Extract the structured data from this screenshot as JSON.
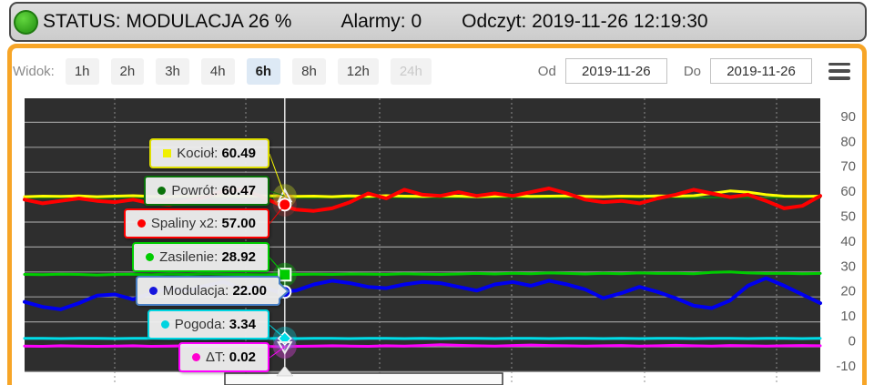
{
  "status_bar": {
    "status": "STATUS: MODULACJA 26 %",
    "alarms": "Alarmy: 0",
    "reading": "Odczyt: 2019-11-26 12:19:30",
    "led_color": "#3db024"
  },
  "toolbar": {
    "view_label": "Widok:",
    "buttons": [
      {
        "label": "1h",
        "state": "normal"
      },
      {
        "label": "2h",
        "state": "normal"
      },
      {
        "label": "3h",
        "state": "normal"
      },
      {
        "label": "4h",
        "state": "normal"
      },
      {
        "label": "6h",
        "state": "active"
      },
      {
        "label": "8h",
        "state": "normal"
      },
      {
        "label": "12h",
        "state": "normal"
      },
      {
        "label": "24h",
        "state": "disabled"
      }
    ],
    "od_label": "Od",
    "od_value": "2019-11-26",
    "do_label": "Do",
    "do_value": "2019-11-26",
    "accent_color": "#f7a527",
    "active_button_color": "#dde9f5"
  },
  "chart_data": {
    "type": "line",
    "background": "#2e2e2e",
    "grid": true,
    "ylim": [
      -10,
      100
    ],
    "yticks": [
      90,
      80,
      70,
      60,
      50,
      40,
      30,
      20,
      10,
      0,
      -10
    ],
    "crosshair_fraction": 0.327,
    "series": [
      {
        "name": "Kocioł",
        "color": "#ffff00",
        "width": 3,
        "marker": "triangle-up",
        "value_at_cursor": 60.49,
        "values": [
          60.2,
          60.4,
          60.3,
          60.5,
          60.2,
          60.4,
          60.6,
          60.3,
          60.2,
          60.5,
          60.4,
          60.6,
          60.3,
          60.5,
          60.5,
          60.3,
          60.4,
          60.2,
          60.5,
          60.3,
          60.6,
          60.4,
          60.3,
          60.5,
          60.4,
          60.2,
          60.4,
          60.6,
          60.3,
          60.4,
          60.5,
          60.3,
          60.2,
          60.4,
          60.3,
          60.5,
          60.4,
          60.6,
          61.5,
          62.5,
          62,
          61,
          60.4,
          60.3,
          60.4
        ]
      },
      {
        "name": "Powrót",
        "color": "#0a720a",
        "width": 2,
        "marker": "none",
        "value_at_cursor": 60.47,
        "values": [
          59.8,
          59.7,
          59.9,
          59.8,
          59.6,
          59.8,
          59.9,
          59.7,
          59.8,
          59.9,
          59.8,
          59.7,
          59.9,
          59.8,
          60,
          59.8,
          59.7,
          59.9,
          59.8,
          59.7,
          59.9,
          59.8,
          59.9,
          59.7,
          59.8,
          59.9,
          59.8,
          59.7,
          59.8,
          59.9,
          59.7,
          59.8,
          59.9,
          59.8,
          59.7,
          59.9,
          59.8,
          59.7,
          59.8,
          59.9,
          59.8,
          59.7,
          59.8,
          59.9,
          59.8
        ]
      },
      {
        "name": "Spaliny x2",
        "color": "#ff0000",
        "width": 4,
        "marker": "circle",
        "value_at_cursor": 57.0,
        "values": [
          59,
          57.5,
          58.5,
          59.5,
          58.5,
          58,
          59,
          57.5,
          57,
          58.5,
          60,
          62.5,
          63,
          60.5,
          57.3,
          55,
          54.5,
          55.5,
          58,
          61.5,
          59.5,
          63,
          61,
          60.5,
          62,
          60.5,
          61.5,
          60.5,
          62,
          63.5,
          61.5,
          59,
          58,
          58.5,
          57.5,
          59.5,
          61,
          63,
          61.5,
          60,
          61,
          58.5,
          55.5,
          56.5,
          60.5
        ]
      },
      {
        "name": "Zasilenie",
        "color": "#00cc00",
        "width": 3,
        "marker": "square",
        "value_at_cursor": 28.92,
        "values": [
          29,
          28.9,
          29.1,
          29,
          28.8,
          29,
          29.1,
          28.9,
          29.2,
          29,
          29.3,
          29.1,
          29,
          28.9,
          28.9,
          29,
          29.1,
          29,
          29.2,
          29.1,
          29,
          29.3,
          29.1,
          29,
          29.2,
          29.4,
          29.2,
          29.5,
          29.3,
          29.6,
          29.4,
          29.2,
          29.5,
          29.3,
          29.6,
          29.4,
          29.5,
          29.3,
          29.8,
          30,
          29.6,
          29.4,
          29.5,
          29.3,
          29.4
        ]
      },
      {
        "name": "Modulacja",
        "color": "#0000ee",
        "width": 4,
        "marker": "circle",
        "value_at_cursor": 22.0,
        "values": [
          18,
          16,
          15,
          17.5,
          20.5,
          21,
          19,
          21.5,
          23.5,
          22.5,
          24.5,
          26,
          23.5,
          24.5,
          22,
          22.5,
          25,
          26.5,
          25.5,
          24,
          23.5,
          25,
          26,
          25.5,
          24,
          22.5,
          25,
          26,
          24.5,
          26.5,
          25,
          23,
          19.5,
          21.5,
          24,
          22,
          19.5,
          16.5,
          15.5,
          18.5,
          24.5,
          27.5,
          24.5,
          21,
          17.5
        ]
      },
      {
        "name": "Pogoda",
        "color": "#00dde8",
        "width": 3,
        "marker": "diamond",
        "value_at_cursor": 3.34,
        "values": [
          3.4,
          3.4,
          3.3,
          3.4,
          3.4,
          3.3,
          3.4,
          3.4,
          3.3,
          3.4,
          3.3,
          3.4,
          3.4,
          3.3,
          3.34,
          3.3,
          3.4,
          3.4,
          3.3,
          3.4,
          3.4,
          3.3,
          3.4,
          3.3,
          3.4,
          3.4,
          3.3,
          3.4,
          3.4,
          3.3,
          3.4,
          3.4,
          3.3,
          3.4,
          3.3,
          3.4,
          3.4,
          3.3,
          3.4,
          3.4,
          3.3,
          3.4,
          3.4,
          3.3,
          3.4
        ]
      },
      {
        "name": "ΔT",
        "color": "#ff00ff",
        "width": 3,
        "marker": "triangle-down",
        "value_at_cursor": 0.02,
        "values": [
          0.3,
          0.2,
          0.4,
          0.3,
          0.2,
          0.3,
          0.4,
          0.2,
          0.3,
          0.4,
          0.3,
          0.2,
          0.4,
          0.3,
          0.02,
          0.2,
          0.3,
          0.4,
          0.3,
          0.2,
          0.4,
          0.3,
          0.5,
          0.8,
          0.6,
          0.4,
          0.3,
          0.5,
          0.7,
          0.5,
          0.4,
          0.3,
          0.4,
          0.5,
          0.3,
          0.4,
          0.6,
          0.4,
          0.3,
          0.5,
          0.4,
          0.3,
          0.4,
          0.5,
          0.4
        ]
      }
    ],
    "tooltips": [
      {
        "label": "Kocioł:",
        "value": "60.49",
        "color": "#dede00",
        "dot": "#f0f000",
        "dot_shape": "square"
      },
      {
        "label": "Powrót:",
        "value": "60.47",
        "color": "#0a720a",
        "dot": "#0a720a",
        "dot_shape": "circle"
      },
      {
        "label": "Spaliny x2:",
        "value": "57.00",
        "color": "#ff0000",
        "dot": "#ff0000",
        "dot_shape": "circle"
      },
      {
        "label": "Zasilenie:",
        "value": "28.92",
        "color": "#00cc00",
        "dot": "#00cc00",
        "dot_shape": "circle"
      },
      {
        "label": "Modulacja:",
        "value": "22.00",
        "color": "#4a80c4",
        "dot": "#1515dd",
        "dot_shape": "circle"
      },
      {
        "label": "Pogoda:",
        "value": "3.34",
        "color": "#00d4e0",
        "dot": "#00d4e0",
        "dot_shape": "circle"
      },
      {
        "label": "ΔT:",
        "value": "0.02",
        "color": "#ff00ff",
        "dot": "#ff00d0",
        "dot_shape": "circle"
      }
    ]
  }
}
